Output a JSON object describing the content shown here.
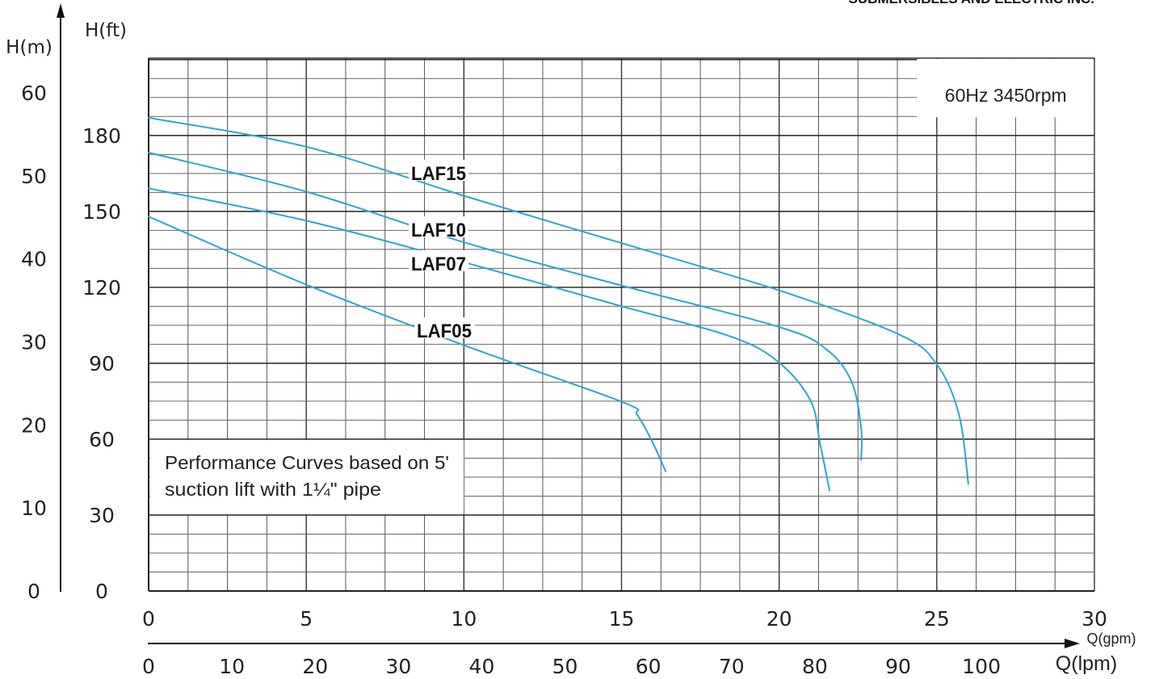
{
  "header": {
    "brand_text": "SUBMERSIBLES AND ELECTRIC INC."
  },
  "chart_data": {
    "type": "line",
    "title": "",
    "speed_label": "60Hz 3450rpm",
    "note_lines": [
      "Performance Curves based on 5'",
      "suction lift with 1¼\" pipe"
    ],
    "y_axis_m": {
      "label": "H(m)",
      "range": [
        0,
        60
      ],
      "ticks": [
        0,
        10,
        20,
        30,
        40,
        50,
        60
      ]
    },
    "y_axis_ft": {
      "label": "H(ft)",
      "range": [
        0,
        190
      ],
      "ticks": [
        0,
        30,
        60,
        90,
        120,
        150,
        180
      ]
    },
    "x_axis_gpm": {
      "label": "Q(gpm)",
      "range": [
        0,
        30
      ],
      "ticks": [
        0,
        5,
        10,
        15,
        20,
        25,
        30
      ]
    },
    "x_axis_lpm": {
      "label": "Q(lpm)",
      "ticks": [
        0,
        10,
        20,
        30,
        40,
        50,
        60,
        70,
        80,
        90,
        100
      ]
    },
    "grid": true,
    "line_color": "#2aa7cf",
    "series": [
      {
        "name": "LAF15",
        "x": [
          0,
          5,
          10,
          15,
          20,
          23.8,
          25,
          25.7,
          26
        ],
        "y": [
          57,
          53.5,
          47.6,
          41.9,
          36.2,
          30.9,
          27.3,
          21.3,
          12.9
        ]
      },
      {
        "name": "LAF10",
        "x": [
          0,
          5,
          10,
          15,
          20,
          21.5,
          22.3,
          22.6,
          22.6
        ],
        "y": [
          52.8,
          48.1,
          42,
          36.8,
          31.8,
          29.1,
          25.2,
          19.6,
          15.8
        ]
      },
      {
        "name": "LAF07",
        "x": [
          0,
          5,
          10,
          15,
          18.5,
          20,
          21,
          21.3,
          21.6
        ],
        "y": [
          48.5,
          44.6,
          39.6,
          34.3,
          30.6,
          27.5,
          22.9,
          17.7,
          12.1
        ]
      },
      {
        "name": "LAF05",
        "x": [
          0,
          5,
          10,
          15,
          15.5,
          16,
          16.4
        ],
        "y": [
          45.1,
          36.9,
          29.6,
          22.8,
          21.2,
          17.8,
          14.4
        ]
      }
    ]
  }
}
